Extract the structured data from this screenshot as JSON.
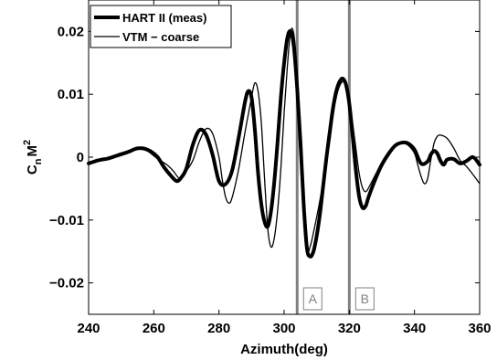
{
  "chart_data": {
    "type": "line",
    "title": "",
    "xlabel": "Azimuth(deg)",
    "ylabel": "C",
    "ylabel_sub": "n",
    "ylabel_tail": "M",
    "ylabel_sup": "2",
    "xlim": [
      240,
      360
    ],
    "ylim": [
      -0.025,
      0.025
    ],
    "xticks": [
      240,
      260,
      280,
      300,
      320,
      340,
      360
    ],
    "yticks": [
      -0.02,
      -0.01,
      0,
      0.01,
      0.02
    ],
    "xtick_labels": [
      "240",
      "260",
      "280",
      "300",
      "320",
      "340",
      "360"
    ],
    "ytick_labels": [
      "−0.02",
      "−0.01",
      "0",
      "0.01",
      "0.02"
    ],
    "grid": false,
    "legend_position": "top-left",
    "series": [
      {
        "name": "HART II (meas)",
        "style": "thick",
        "color": "#000000",
        "x": [
          240,
          243,
          246,
          249,
          252,
          255,
          258,
          261,
          263,
          265,
          267,
          268.5,
          270,
          272,
          274,
          276,
          278,
          280,
          282,
          284,
          286,
          288,
          289,
          290,
          291,
          292,
          293,
          294,
          295,
          296,
          297,
          298,
          299,
          300,
          301,
          302,
          303,
          304,
          305,
          306,
          307,
          308,
          309,
          310,
          311,
          312,
          313,
          314,
          315,
          316,
          317,
          318,
          319,
          320,
          321,
          322,
          323,
          324,
          325,
          326,
          328,
          330,
          332,
          334,
          336,
          338,
          340,
          342,
          344,
          345,
          346,
          347,
          348,
          349,
          350,
          352,
          354,
          356,
          358,
          360
        ],
        "y": [
          -0.001,
          -0.0005,
          -0.0002,
          0.0003,
          0.0008,
          0.0014,
          0.0012,
          0.0001,
          -0.0015,
          -0.0028,
          -0.0038,
          -0.0032,
          -0.0018,
          0.002,
          0.0043,
          0.0036,
          0.0005,
          -0.0038,
          -0.0043,
          -0.0022,
          0.003,
          0.0088,
          0.0105,
          0.0095,
          0.0045,
          -0.0025,
          -0.0075,
          -0.0103,
          -0.011,
          -0.0085,
          -0.0038,
          0.0025,
          0.0095,
          0.015,
          0.019,
          0.02,
          0.0175,
          0.011,
          0.0025,
          -0.0075,
          -0.0145,
          -0.0158,
          -0.015,
          -0.0125,
          -0.009,
          -0.0045,
          0.0,
          0.004,
          0.0078,
          0.0105,
          0.012,
          0.0125,
          0.0115,
          0.0085,
          0.0035,
          -0.002,
          -0.0062,
          -0.008,
          -0.0078,
          -0.0062,
          -0.0035,
          -0.0012,
          0.0005,
          0.0018,
          0.0023,
          0.0022,
          0.0012,
          -0.001,
          -0.0007,
          0.0004,
          0.001,
          0.0006,
          -0.0006,
          -0.0012,
          -0.0004,
          -0.0003,
          -0.001,
          -0.0006,
          0.0,
          -0.0012
        ]
      },
      {
        "name": "VTM − coarse",
        "style": "thin",
        "color": "#000000",
        "x": [
          240,
          243,
          246,
          249,
          252,
          255,
          258,
          261,
          264,
          266,
          268,
          270,
          272,
          274,
          276,
          278,
          280,
          281,
          282,
          283,
          284,
          286,
          288,
          290,
          291,
          292,
          293,
          294,
          295,
          296,
          297,
          298,
          299,
          300,
          301,
          302,
          303,
          304,
          305,
          306,
          307,
          308,
          309,
          310,
          311,
          312,
          313,
          314,
          315,
          316,
          317,
          318,
          319,
          320,
          321,
          322,
          323,
          324,
          325,
          326,
          328,
          330,
          332,
          334,
          336,
          338,
          340,
          341,
          342,
          343,
          344,
          345,
          346,
          347,
          348,
          350,
          352,
          354,
          356,
          358,
          360
        ],
        "y": [
          -0.0008,
          -0.0006,
          -0.0001,
          0.0005,
          0.001,
          0.0015,
          0.001,
          -0.0002,
          -0.0012,
          -0.0022,
          -0.0034,
          -0.0022,
          -0.0005,
          0.0025,
          0.0045,
          0.0038,
          0.0,
          -0.0035,
          -0.0063,
          -0.0073,
          -0.0065,
          -0.002,
          0.004,
          0.0095,
          0.0118,
          0.0105,
          0.0055,
          -0.0035,
          -0.0115,
          -0.0143,
          -0.0128,
          -0.0085,
          -0.0018,
          0.007,
          0.0145,
          0.02,
          0.0195,
          0.0135,
          0.0035,
          -0.0085,
          -0.0148,
          -0.0142,
          -0.012,
          -0.0095,
          -0.0068,
          -0.0038,
          -0.0008,
          0.0025,
          0.0065,
          0.0095,
          0.0113,
          0.012,
          0.0115,
          0.0095,
          0.0055,
          0.0015,
          -0.0025,
          -0.0048,
          -0.0055,
          -0.0048,
          -0.0028,
          -0.0008,
          0.0008,
          0.0019,
          0.0023,
          0.0019,
          0.0006,
          -0.0012,
          -0.003,
          -0.0042,
          -0.0035,
          -0.0005,
          0.0022,
          0.0033,
          0.0035,
          0.003,
          0.0015,
          -0.0005,
          -0.0015,
          -0.0028,
          -0.0042
        ]
      }
    ],
    "vertical_lines": [
      {
        "x": 304,
        "label": "A"
      },
      {
        "x": 320,
        "label": "B"
      }
    ],
    "vline_color": "#808080"
  }
}
